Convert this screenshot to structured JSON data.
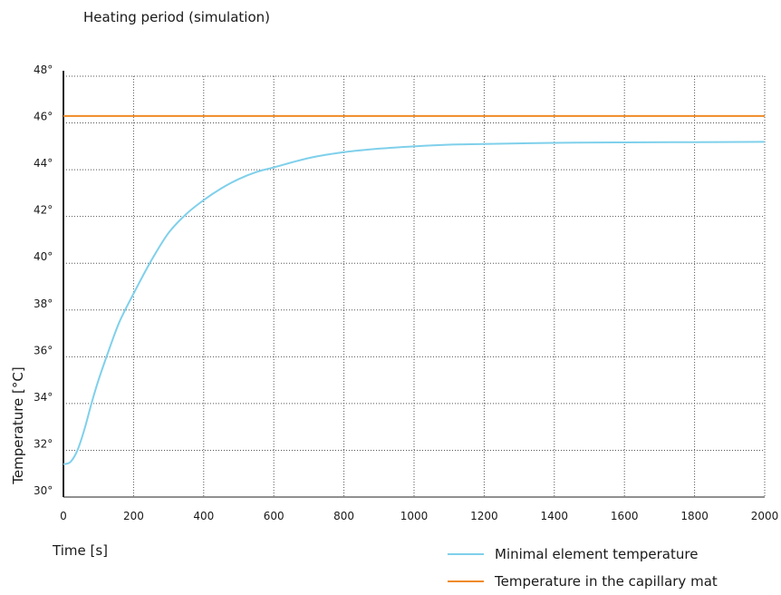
{
  "chart_data": {
    "type": "line",
    "title": "Heating period (simulation)",
    "xlabel": "Time [s]",
    "ylabel": "Temperature [°C]",
    "xlim": [
      0,
      2000
    ],
    "ylim": [
      30,
      48
    ],
    "x_ticks": [
      "0",
      "200",
      "400",
      "600",
      "800",
      "1000",
      "1200",
      "1400",
      "1600",
      "1800",
      "2000"
    ],
    "y_ticks": [
      "30°",
      "32°",
      "34°",
      "36°",
      "38°",
      "40°",
      "42°",
      "44°",
      "46°",
      "48°"
    ],
    "grid": true,
    "legend_position": "bottom-right",
    "series": [
      {
        "name": "Minimal element temperature",
        "color": "#7fd0eb",
        "x": [
          0,
          20,
          40,
          60,
          80,
          100,
          130,
          160,
          200,
          250,
          300,
          350,
          400,
          450,
          500,
          550,
          600,
          700,
          800,
          900,
          1000,
          1100,
          1200,
          1400,
          1600,
          1800,
          2000
        ],
        "y": [
          31.4,
          31.5,
          32.0,
          32.9,
          34.0,
          35.0,
          36.3,
          37.5,
          38.7,
          40.1,
          41.3,
          42.1,
          42.7,
          43.2,
          43.6,
          43.9,
          44.1,
          44.5,
          44.75,
          44.9,
          45.0,
          45.07,
          45.1,
          45.15,
          45.17,
          45.18,
          45.19
        ]
      },
      {
        "name": "Temperature in the capillary mat",
        "color": "#f08a24",
        "x": [
          0,
          2000
        ],
        "y": [
          46.3,
          46.3
        ]
      }
    ]
  }
}
